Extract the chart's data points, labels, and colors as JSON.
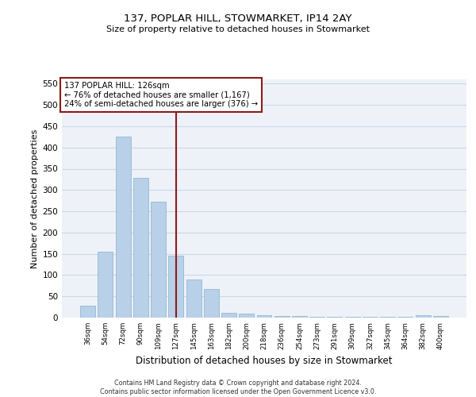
{
  "title1": "137, POPLAR HILL, STOWMARKET, IP14 2AY",
  "title2": "Size of property relative to detached houses in Stowmarket",
  "xlabel": "Distribution of detached houses by size in Stowmarket",
  "ylabel": "Number of detached properties",
  "categories": [
    "36sqm",
    "54sqm",
    "72sqm",
    "90sqm",
    "109sqm",
    "127sqm",
    "145sqm",
    "163sqm",
    "182sqm",
    "200sqm",
    "218sqm",
    "236sqm",
    "254sqm",
    "273sqm",
    "291sqm",
    "309sqm",
    "327sqm",
    "345sqm",
    "364sqm",
    "382sqm",
    "400sqm"
  ],
  "values": [
    28,
    155,
    425,
    328,
    273,
    145,
    90,
    67,
    12,
    10,
    6,
    3,
    3,
    1,
    1,
    1,
    1,
    1,
    1,
    5,
    3
  ],
  "bar_color": "#b8d0e8",
  "bar_edge_color": "#8ab0cc",
  "vline_x_idx": 5,
  "vline_color": "#8b1a1a",
  "annotation_box_color": "#8b1a1a",
  "annotation_text1": "137 POPLAR HILL: 126sqm",
  "annotation_text2": "← 76% of detached houses are smaller (1,167)",
  "annotation_text3": "24% of semi-detached houses are larger (376) →",
  "ylim": [
    0,
    560
  ],
  "yticks": [
    0,
    50,
    100,
    150,
    200,
    250,
    300,
    350,
    400,
    450,
    500,
    550
  ],
  "grid_color": "#c8d8ea",
  "background_color": "#eef2f8",
  "footer1": "Contains HM Land Registry data © Crown copyright and database right 2024.",
  "footer2": "Contains public sector information licensed under the Open Government Licence v3.0."
}
